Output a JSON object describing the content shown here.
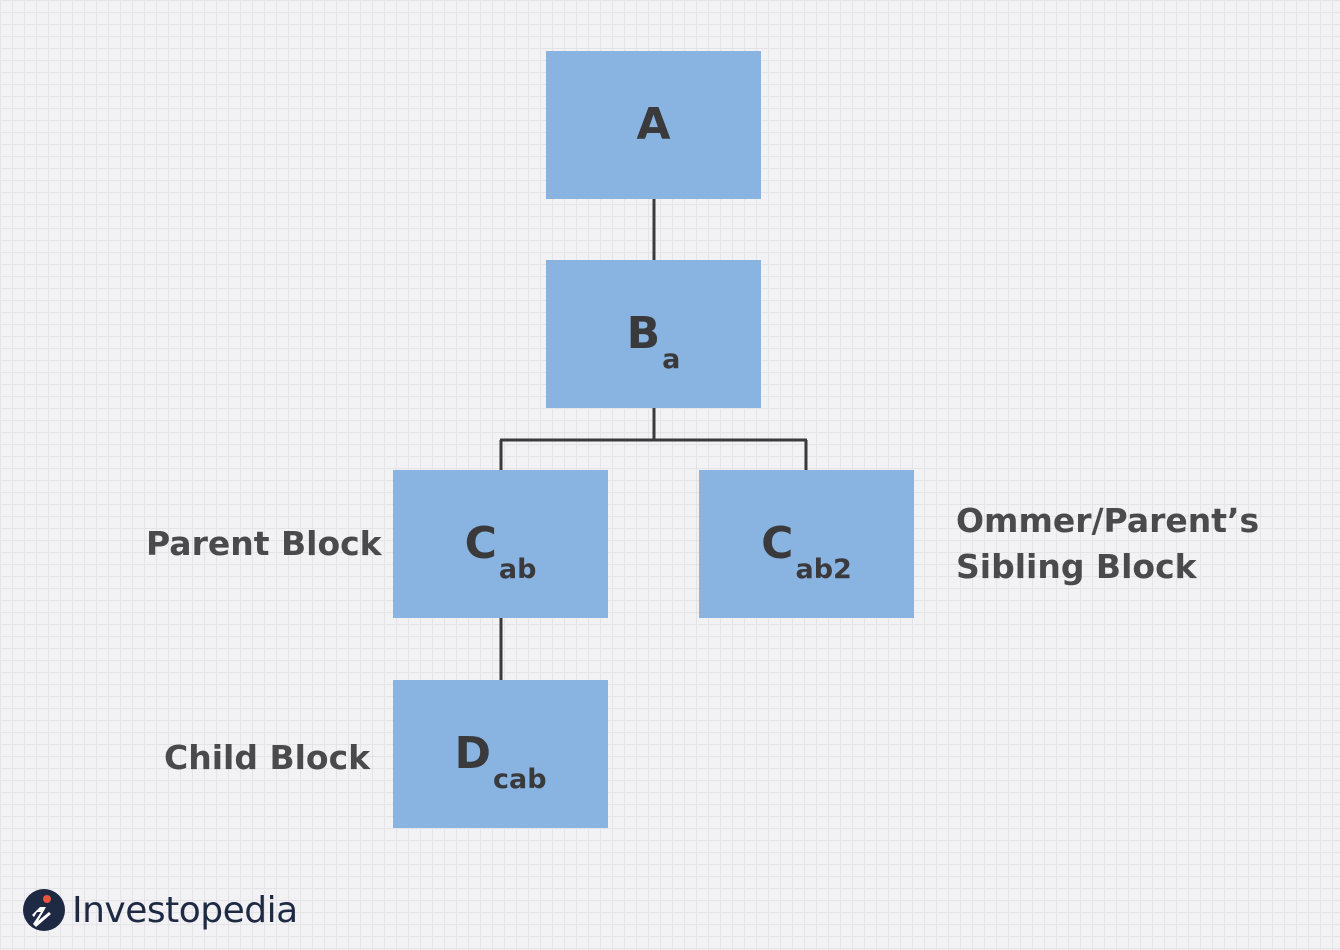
{
  "blocks": {
    "a": {
      "main": "A",
      "sub": ""
    },
    "b": {
      "main": "B",
      "sub": "a"
    },
    "c_parent": {
      "main": "C",
      "sub": "ab"
    },
    "c_ommer": {
      "main": "C",
      "sub": "ab2"
    },
    "d": {
      "main": "D",
      "sub": "cab"
    }
  },
  "labels": {
    "parent": "Parent Block",
    "ommer_line1": "Ommer/Parent’s",
    "ommer_line2": "Sibling Block",
    "child": "Child Block"
  },
  "brand": {
    "name": "Investopedia",
    "logo_icon": "investopedia-i-icon"
  },
  "colors": {
    "block_fill": "#89b4e1",
    "connector": "#3a3a3c",
    "text": "#3d3d3f"
  }
}
